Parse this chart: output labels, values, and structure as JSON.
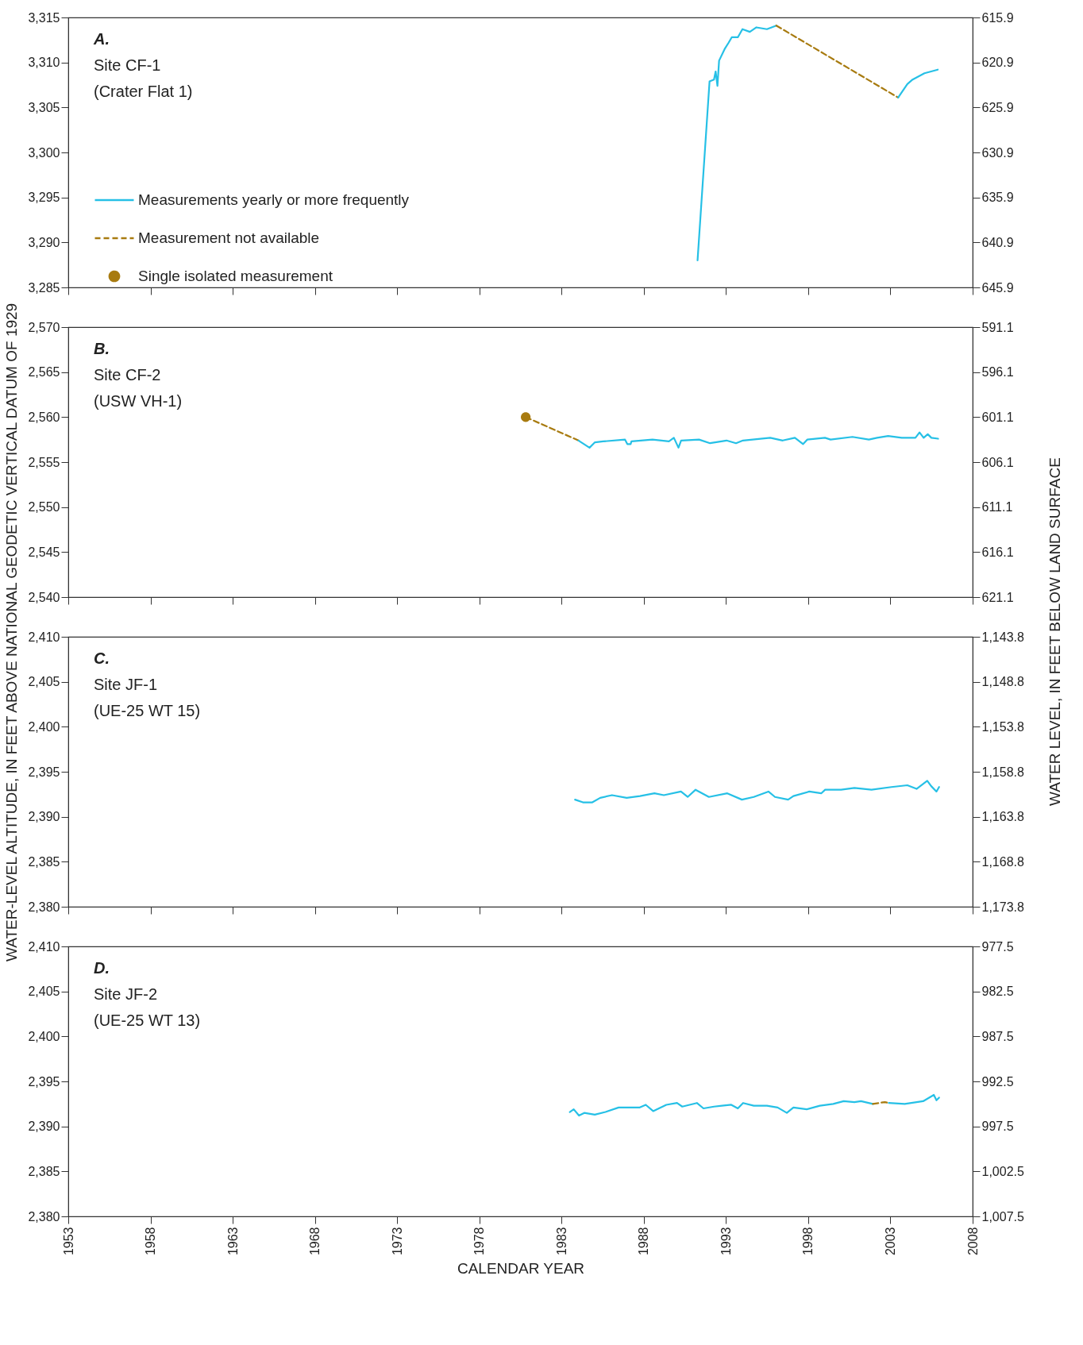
{
  "chart_data": [
    {
      "type": "line",
      "title": "A.",
      "annotations": [
        "Site CF-1",
        "(Crater Flat 1)"
      ],
      "ylabel": "WATER-LEVEL ALTITUDE, IN FEET ABOVE NATIONAL GEODETIC VERTICAL DATUM OF 1929",
      "y2label": "WATER LEVEL, IN FEET BELOW LAND SURFACE",
      "xlim": [
        1953,
        2008
      ],
      "xticks": [
        1953,
        1958,
        1963,
        1968,
        1973,
        1978,
        1983,
        1988,
        1993,
        1998,
        2003,
        2008
      ],
      "ylim": [
        3285,
        3315
      ],
      "yticks": [
        {
          "value": 3285,
          "label": "3,285"
        },
        {
          "value": 3290,
          "label": "3,290"
        },
        {
          "value": 3295,
          "label": "3,295"
        },
        {
          "value": 3300,
          "label": "3,300"
        },
        {
          "value": 3305,
          "label": "3,305"
        },
        {
          "value": 3310,
          "label": "3,310"
        },
        {
          "value": 3315,
          "label": "3,315"
        }
      ],
      "y2lim": [
        645.9,
        615.9
      ],
      "y2ticks": [
        615.9,
        620.9,
        625.9,
        630.9,
        635.9,
        640.9,
        645.9
      ],
      "tick_labels": "y",
      "legend": "left",
      "series": [
        {
          "name": "Measurements yearly or more frequently",
          "color": "#26c0e6",
          "line_style": "solid",
          "x": [
            1991.27,
            1992.0,
            1992.27,
            1992.37,
            1992.48,
            1992.58,
            1992.92,
            1993.16,
            1993.35,
            1993.72,
            1994.0,
            1994.45,
            1994.85,
            1995.49,
            1996.06
          ],
          "values": [
            3288.0,
            3307.9,
            3308.1,
            3309.0,
            3307.4,
            3310.2,
            3311.5,
            3312.2,
            3312.8,
            3312.8,
            3313.7,
            3313.4,
            3313.9,
            3313.7,
            3314.1
          ]
        },
        {
          "name": "Measurement not available",
          "color": "#a87b10",
          "line_style": "dashed",
          "x": [
            1996.06,
            2003.47
          ],
          "values": [
            3314.1,
            3306.1
          ]
        },
        {
          "name": "Single isolated measurement",
          "type": "scatter",
          "marker": "circle",
          "color": "#a87b10"
        },
        {
          "color": "#26c0e6",
          "line_style": "solid",
          "x": [
            2003.47,
            2004.03,
            2004.35,
            2005.07,
            2005.88
          ],
          "values": [
            3306.1,
            3307.6,
            3308.1,
            3308.8,
            3309.2
          ]
        }
      ]
    },
    {
      "type": "line",
      "title": "B.",
      "annotations": [
        "Site CF-2",
        "(USW VH-1)"
      ],
      "xlim": [
        1953,
        2008
      ],
      "xticks": [
        1953,
        1958,
        1963,
        1968,
        1973,
        1978,
        1983,
        1988,
        1993,
        1998,
        2003,
        2008
      ],
      "ylim": [
        2540,
        2570
      ],
      "yticks": [
        {
          "value": 2540,
          "label": "2,540"
        },
        {
          "value": 2545,
          "label": "2,545"
        },
        {
          "value": 2550,
          "label": "2,550"
        },
        {
          "value": 2555,
          "label": "2,555"
        },
        {
          "value": 2560,
          "label": "2,560"
        },
        {
          "value": 2565,
          "label": "2,565"
        },
        {
          "value": 2570,
          "label": "2,570"
        }
      ],
      "y2lim": [
        621.1,
        591.1
      ],
      "y2ticks": [
        591.1,
        596.1,
        601.1,
        606.1,
        611.1,
        616.1,
        621.1
      ],
      "tick_labels": "y",
      "series": [
        {
          "color": "#a87b10",
          "line_style": "dashed",
          "x": [
            1980.82,
            1984.03
          ],
          "values": [
            2560,
            2557.4
          ]
        },
        {
          "type": "scatter",
          "marker": "circle",
          "color": "#a87b10",
          "x": [
            1980.82
          ],
          "values": [
            2560
          ]
        },
        {
          "color": "#26c0e6",
          "line_style": "solid",
          "x": [
            1984.03,
            1984.7,
            1985.03,
            1985.53,
            1986.86,
            1987.0,
            1987.2,
            1987.25,
            1988.53,
            1989.53,
            1989.83,
            1990.11,
            1990.27,
            1991.36,
            1992.03,
            1993.03,
            1993.61,
            1994.03,
            1995.69,
            1996.45,
            1997.19,
            1997.69,
            1997.94,
            1999.02,
            1999.36,
            2000.69,
            2001.69,
            2002.19,
            2002.86,
            2003.69,
            2004.52,
            2004.77,
            2005.02,
            2005.27,
            2005.49,
            2005.9
          ],
          "values": [
            2557.4,
            2556.6,
            2557.2,
            2557.3,
            2557.5,
            2557.0,
            2557.0,
            2557.3,
            2557.5,
            2557.3,
            2557.7,
            2556.6,
            2557.4,
            2557.5,
            2557.1,
            2557.4,
            2557.1,
            2557.4,
            2557.7,
            2557.4,
            2557.7,
            2557.0,
            2557.5,
            2557.7,
            2557.5,
            2557.8,
            2557.5,
            2557.7,
            2557.9,
            2557.7,
            2557.7,
            2558.3,
            2557.7,
            2558.1,
            2557.7,
            2557.6
          ]
        }
      ]
    },
    {
      "type": "line",
      "title": "C.",
      "annotations": [
        "Site JF-1",
        "(UE-25 WT 15)"
      ],
      "xlim": [
        1953,
        2008
      ],
      "xticks": [
        1953,
        1958,
        1963,
        1968,
        1973,
        1978,
        1983,
        1988,
        1993,
        1998,
        2003,
        2008
      ],
      "ylim": [
        2380,
        2410
      ],
      "yticks": [
        {
          "value": 2380,
          "label": "2,380"
        },
        {
          "value": 2385,
          "label": "2,385"
        },
        {
          "value": 2390,
          "label": "2,390"
        },
        {
          "value": 2395,
          "label": "2,395"
        },
        {
          "value": 2400,
          "label": "2,400"
        },
        {
          "value": 2405,
          "label": "2,405"
        },
        {
          "value": 2410,
          "label": "2,410"
        }
      ],
      "y2lim": [
        1173.8,
        1143.8
      ],
      "y2ticks": [
        {
          "value": 1143.8,
          "label": "1,143.8"
        },
        {
          "value": 1148.8,
          "label": "1,148.8"
        },
        {
          "value": 1153.8,
          "label": "1,153.8"
        },
        {
          "value": 1158.8,
          "label": "1,158.8"
        },
        {
          "value": 1163.8,
          "label": "1,163.8"
        },
        {
          "value": 1168.8,
          "label": "1,168.8"
        },
        {
          "value": 1173.8,
          "label": "1,173.8"
        }
      ],
      "tick_labels": "y",
      "series": [
        {
          "color": "#26c0e6",
          "line_style": "solid",
          "x": [
            1983.82,
            1984.3,
            1984.87,
            1985.35,
            1986.07,
            1986.96,
            1987.77,
            1988.65,
            1989.22,
            1990.26,
            1990.67,
            1991.15,
            1991.96,
            1993.08,
            1993.97,
            1994.69,
            1995.58,
            1995.98,
            1996.78,
            1997.1,
            1998.07,
            1998.79,
            1999.03,
            2000.0,
            2000.81,
            2001.85,
            2003.06,
            2004.03,
            2004.59,
            2005.24,
            2005.48,
            2005.8,
            2005.96
          ],
          "values": [
            2391.9,
            2391.6,
            2391.6,
            2392.1,
            2392.4,
            2392.1,
            2392.3,
            2392.6,
            2392.4,
            2392.8,
            2392.2,
            2393.0,
            2392.2,
            2392.6,
            2391.9,
            2392.2,
            2392.8,
            2392.2,
            2391.9,
            2392.3,
            2392.8,
            2392.6,
            2393.0,
            2393.0,
            2393.2,
            2393.0,
            2393.3,
            2393.5,
            2393.1,
            2394.0,
            2393.4,
            2392.8,
            2393.3
          ]
        }
      ]
    },
    {
      "type": "line",
      "title": "D.",
      "annotations": [
        "Site JF-2",
        "(UE-25 WT 13)"
      ],
      "xlabel": "CALENDAR YEAR",
      "xlim": [
        1953,
        2008
      ],
      "xticks": [
        1953,
        1958,
        1963,
        1968,
        1973,
        1978,
        1983,
        1988,
        1993,
        1998,
        2003,
        2008
      ],
      "ylim": [
        2380,
        2410
      ],
      "yticks": [
        {
          "value": 2380,
          "label": "2,380"
        },
        {
          "value": 2385,
          "label": "2,385"
        },
        {
          "value": 2390,
          "label": "2,390"
        },
        {
          "value": 2395,
          "label": "2,395"
        },
        {
          "value": 2400,
          "label": "2,400"
        },
        {
          "value": 2405,
          "label": "2,405"
        },
        {
          "value": 2410,
          "label": "2,410"
        }
      ],
      "y2lim": [
        1007.5,
        977.5
      ],
      "y2ticks": [
        977.5,
        982.5,
        987.5,
        992.5,
        997.5,
        {
          "value": 1002.5,
          "label": "1,002.5"
        },
        {
          "value": 1007.5,
          "label": "1,007.5"
        }
      ],
      "series": [
        {
          "color": "#26c0e6",
          "line_style": "solid",
          "x": [
            1983.5,
            1983.74,
            1984.06,
            1984.38,
            1985.02,
            1985.67,
            1986.47,
            1987.76,
            1988.12,
            1988.57,
            1989.37,
            1990.02,
            1990.34,
            1991.23,
            1991.63,
            1992.27,
            1992.75,
            1993.32,
            1993.72,
            1994.04,
            1994.69,
            1995.49,
            1996.14,
            1996.7,
            1997.1,
            1997.91,
            1998.71,
            1999.52,
            2000.16,
            2000.81,
            2001.21,
            2001.93
          ],
          "values": [
            2391.6,
            2391.9,
            2391.2,
            2391.5,
            2391.3,
            2391.6,
            2392.1,
            2392.1,
            2392.4,
            2391.7,
            2392.4,
            2392.6,
            2392.2,
            2392.6,
            2392.0,
            2392.2,
            2392.3,
            2392.4,
            2392.0,
            2392.6,
            2392.3,
            2392.3,
            2392.1,
            2391.5,
            2392.1,
            2391.9,
            2392.3,
            2392.5,
            2392.8,
            2392.7,
            2392.8,
            2392.5
          ]
        },
        {
          "color": "#a87b10",
          "line_style": "dashed",
          "x": [
            2001.93,
            2002.66,
            2002.9
          ],
          "values": [
            2392.5,
            2392.7,
            2392.6
          ]
        },
        {
          "color": "#26c0e6",
          "line_style": "solid",
          "x": [
            2002.9,
            2003.87,
            2004.99,
            2005.64,
            2005.8,
            2005.96
          ],
          "values": [
            2392.6,
            2392.5,
            2392.8,
            2393.5,
            2392.9,
            2393.2
          ]
        }
      ]
    }
  ]
}
